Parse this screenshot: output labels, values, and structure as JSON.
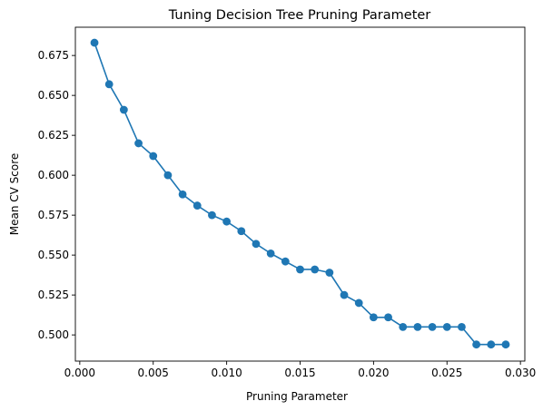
{
  "chart_data": {
    "type": "line",
    "title": "Tuning Decision Tree Pruning Parameter",
    "xlabel": "Pruning Parameter",
    "ylabel": "Mean CV Score",
    "xlim": [
      -0.0003,
      0.0303
    ],
    "ylim": [
      0.4836,
      0.6927
    ],
    "xticks": [
      0.0,
      0.005,
      0.01,
      0.015,
      0.02,
      0.025,
      0.03
    ],
    "xtick_labels": [
      "0.000",
      "0.005",
      "0.010",
      "0.015",
      "0.020",
      "0.025",
      "0.030"
    ],
    "yticks": [
      0.5,
      0.525,
      0.55,
      0.575,
      0.6,
      0.625,
      0.65,
      0.675
    ],
    "ytick_labels": [
      "0.500",
      "0.525",
      "0.550",
      "0.575",
      "0.600",
      "0.625",
      "0.650",
      "0.675"
    ],
    "grid": false,
    "marker": "circle",
    "color": "#1f77b4",
    "series": [
      {
        "x": [
          0.001,
          0.002,
          0.003,
          0.004,
          0.005,
          0.006,
          0.007,
          0.008,
          0.009,
          0.01,
          0.011,
          0.012,
          0.013,
          0.014,
          0.015,
          0.016,
          0.017,
          0.018,
          0.019,
          0.02,
          0.021,
          0.022,
          0.023,
          0.024,
          0.025,
          0.026,
          0.027,
          0.028,
          0.029
        ],
        "values": [
          0.683,
          0.657,
          0.641,
          0.62,
          0.612,
          0.6,
          0.588,
          0.581,
          0.575,
          0.571,
          0.565,
          0.557,
          0.551,
          0.546,
          0.541,
          0.541,
          0.539,
          0.525,
          0.52,
          0.511,
          0.511,
          0.505,
          0.505,
          0.505,
          0.505,
          0.505,
          0.494,
          0.494,
          0.494
        ]
      }
    ]
  }
}
